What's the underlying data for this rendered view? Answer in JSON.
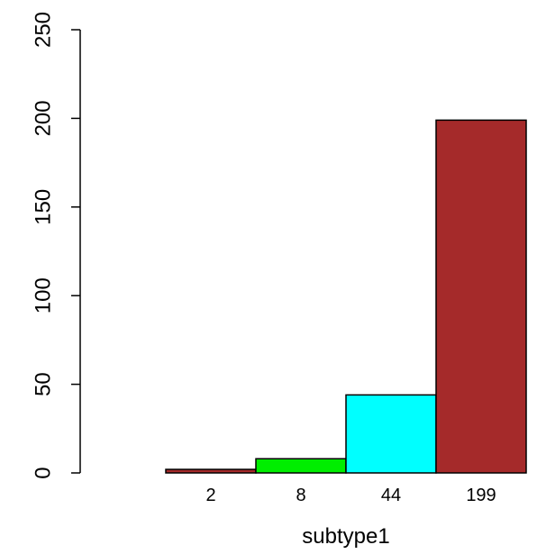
{
  "chart_data": {
    "type": "bar",
    "categories": [
      "2",
      "8",
      "44",
      "199"
    ],
    "values": [
      2,
      8,
      44,
      199
    ],
    "colors": [
      "#a52a2a",
      "#00ee00",
      "#00ffff",
      "#a52a2a"
    ],
    "xlabel": "subtype1",
    "ylabel": "",
    "ylim": [
      0,
      250
    ],
    "yticks": [
      "0",
      "50",
      "100",
      "150",
      "200",
      "250"
    ],
    "grid": false
  }
}
